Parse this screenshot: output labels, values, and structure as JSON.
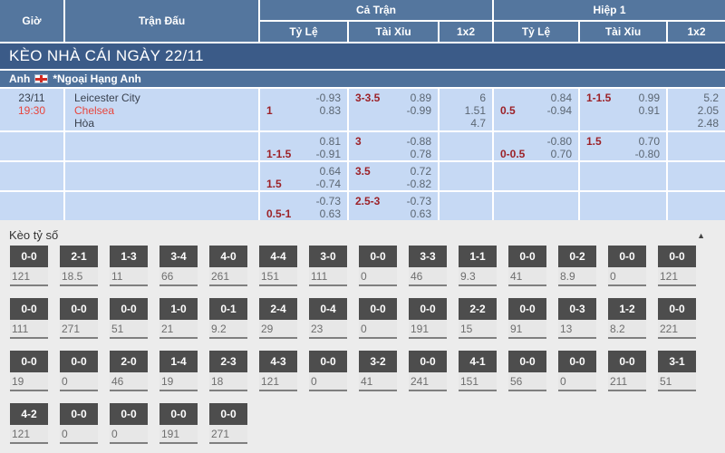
{
  "header": {
    "col_time": "Giờ",
    "col_match": "Trận Đấu",
    "group_full": "Cả Trận",
    "group_half": "Hiệp 1",
    "col_handicap": "Tỷ Lệ",
    "col_over_under": "Tài Xỉu",
    "col_1x2": "1x2"
  },
  "day_banner": "KÈO NHÀ CÁI NGÀY 22/11",
  "league_bar": {
    "country": "Anh",
    "flag_icon": "england-flag",
    "league_name": "*Ngoại Hạng Anh"
  },
  "match": {
    "date": "23/11",
    "time": "19:30",
    "home_team": "Leicester City",
    "away_team": "Chelsea",
    "draw_label": "Hòa"
  },
  "odds_rows": [
    {
      "ft_hdp": {
        "hc": "1",
        "hc_pos": "bottom",
        "v1": "-0.93",
        "v2": "0.83"
      },
      "ft_ou": {
        "hc": "3-3.5",
        "hc_pos": "top",
        "v1": "0.89",
        "v2": "-0.99"
      },
      "ft_1x2": [
        "6",
        "1.51",
        "4.7"
      ],
      "h1_hdp": {
        "hc": "0.5",
        "hc_pos": "bottom",
        "v1": "0.84",
        "v2": "-0.94"
      },
      "h1_ou": {
        "hc": "1-1.5",
        "hc_pos": "top",
        "v1": "0.99",
        "v2": "0.91"
      },
      "h1_1x2": [
        "5.2",
        "2.05",
        "2.48"
      ]
    },
    {
      "ft_hdp": {
        "hc": "1-1.5",
        "hc_pos": "bottom",
        "v1": "0.81",
        "v2": "-0.91"
      },
      "ft_ou": {
        "hc": "3",
        "hc_pos": "top",
        "v1": "-0.88",
        "v2": "0.78"
      },
      "ft_1x2": [],
      "h1_hdp": {
        "hc": "0-0.5",
        "hc_pos": "bottom",
        "v1": "-0.80",
        "v2": "0.70"
      },
      "h1_ou": {
        "hc": "1.5",
        "hc_pos": "top",
        "v1": "0.70",
        "v2": "-0.80"
      },
      "h1_1x2": []
    },
    {
      "ft_hdp": {
        "hc": "1.5",
        "hc_pos": "bottom",
        "v1": "0.64",
        "v2": "-0.74"
      },
      "ft_ou": {
        "hc": "3.5",
        "hc_pos": "top",
        "v1": "0.72",
        "v2": "-0.82"
      },
      "ft_1x2": [],
      "h1_hdp": null,
      "h1_ou": null,
      "h1_1x2": []
    },
    {
      "ft_hdp": {
        "hc": "0.5-1",
        "hc_pos": "bottom",
        "v1": "-0.73",
        "v2": "0.63"
      },
      "ft_ou": {
        "hc": "2.5-3",
        "hc_pos": "top",
        "v1": "-0.73",
        "v2": "0.63"
      },
      "ft_1x2": [],
      "h1_hdp": null,
      "h1_ou": null,
      "h1_1x2": []
    }
  ],
  "score_section": {
    "title": "Kèo tỷ số",
    "collapse_icon": "▲",
    "rows": [
      [
        {
          "score": "0-0",
          "odds": "121"
        },
        {
          "score": "2-1",
          "odds": "18.5"
        },
        {
          "score": "1-3",
          "odds": "11"
        },
        {
          "score": "3-4",
          "odds": "66"
        },
        {
          "score": "4-0",
          "odds": "261"
        },
        {
          "score": "4-4",
          "odds": "151"
        },
        {
          "score": "3-0",
          "odds": "111"
        },
        {
          "score": "0-0",
          "odds": "0"
        },
        {
          "score": "3-3",
          "odds": "46"
        },
        {
          "score": "1-1",
          "odds": "9.3"
        },
        {
          "score": "0-0",
          "odds": "41"
        },
        {
          "score": "0-2",
          "odds": "8.9"
        },
        {
          "score": "0-0",
          "odds": "0"
        },
        {
          "score": "0-0",
          "odds": "121"
        }
      ],
      [
        {
          "score": "0-0",
          "odds": "111"
        },
        {
          "score": "0-0",
          "odds": "271"
        },
        {
          "score": "0-0",
          "odds": "51"
        },
        {
          "score": "1-0",
          "odds": "21"
        },
        {
          "score": "0-1",
          "odds": "9.2"
        },
        {
          "score": "2-4",
          "odds": "29"
        },
        {
          "score": "0-4",
          "odds": "23"
        },
        {
          "score": "0-0",
          "odds": "0"
        },
        {
          "score": "0-0",
          "odds": "191"
        },
        {
          "score": "2-2",
          "odds": "15"
        },
        {
          "score": "0-0",
          "odds": "91"
        },
        {
          "score": "0-3",
          "odds": "13"
        },
        {
          "score": "1-2",
          "odds": "8.2"
        },
        {
          "score": "0-0",
          "odds": "221"
        }
      ],
      [
        {
          "score": "0-0",
          "odds": "19"
        },
        {
          "score": "0-0",
          "odds": "0"
        },
        {
          "score": "2-0",
          "odds": "46"
        },
        {
          "score": "1-4",
          "odds": "19"
        },
        {
          "score": "2-3",
          "odds": "18"
        },
        {
          "score": "4-3",
          "odds": "121"
        },
        {
          "score": "0-0",
          "odds": "0"
        },
        {
          "score": "3-2",
          "odds": "41"
        },
        {
          "score": "0-0",
          "odds": "241"
        },
        {
          "score": "4-1",
          "odds": "151"
        },
        {
          "score": "0-0",
          "odds": "56"
        },
        {
          "score": "0-0",
          "odds": "0"
        },
        {
          "score": "0-0",
          "odds": "211"
        },
        {
          "score": "3-1",
          "odds": "51"
        }
      ],
      [
        {
          "score": "4-2",
          "odds": "121"
        },
        {
          "score": "0-0",
          "odds": "0"
        },
        {
          "score": "0-0",
          "odds": "0"
        },
        {
          "score": "0-0",
          "odds": "191"
        },
        {
          "score": "0-0",
          "odds": "271"
        }
      ]
    ]
  },
  "colors": {
    "header_blue": "#54769e",
    "banner_navy": "#3b5b88",
    "league_blue": "#4e719b",
    "row_blue": "#c6d9f4",
    "handicap_red": "#9c2127",
    "team_red": "#e8453c",
    "value_gray": "#5b6672",
    "text_dark": "#39414e",
    "section_bg": "#ececec",
    "score_box_gray": "#4d4d4d",
    "score_value_gray": "#6e6e6e",
    "score_border_gray": "#7f7f7f"
  }
}
